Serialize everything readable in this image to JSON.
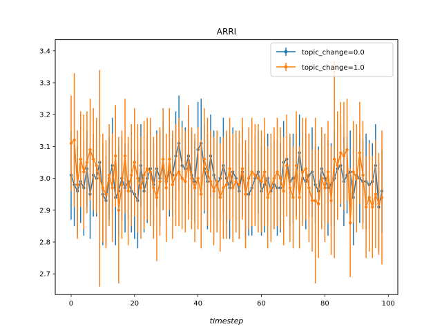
{
  "chart_data": {
    "type": "line",
    "title": "ARRI",
    "xlabel": "timestep",
    "ylabel": "",
    "xlim": [
      -5,
      103
    ],
    "ylim": [
      2.635,
      3.435
    ],
    "xticks": [
      0,
      20,
      40,
      60,
      80,
      100
    ],
    "yticks": [
      2.7,
      2.8,
      2.9,
      3.0,
      3.1,
      3.2,
      3.3,
      3.4
    ],
    "grid": false,
    "legend_position": "top-right",
    "series": [
      {
        "name": "topic_change=0.0",
        "color": "#1f77b4",
        "x": [
          0,
          1,
          2,
          3,
          4,
          5,
          6,
          7,
          8,
          9,
          10,
          11,
          12,
          13,
          14,
          15,
          16,
          17,
          18,
          19,
          20,
          21,
          22,
          23,
          24,
          25,
          26,
          27,
          28,
          29,
          30,
          31,
          32,
          33,
          34,
          35,
          36,
          37,
          38,
          39,
          40,
          41,
          42,
          43,
          44,
          45,
          46,
          47,
          48,
          49,
          50,
          51,
          52,
          53,
          54,
          55,
          56,
          57,
          58,
          59,
          60,
          61,
          62,
          63,
          64,
          65,
          66,
          67,
          68,
          69,
          70,
          71,
          72,
          73,
          74,
          75,
          76,
          77,
          78,
          79,
          80,
          81,
          82,
          83,
          84,
          85,
          86,
          87,
          88,
          89,
          90,
          91,
          92,
          93,
          94,
          95,
          96,
          97,
          98
        ],
        "y": [
          3.01,
          2.98,
          2.96,
          2.99,
          2.97,
          3.03,
          2.95,
          3.01,
          3.0,
          3.05,
          2.95,
          2.93,
          3.0,
          3.04,
          2.94,
          2.96,
          3.0,
          2.97,
          2.99,
          2.96,
          2.95,
          2.93,
          3.04,
          2.96,
          3.0,
          3.03,
          2.98,
          3.03,
          3.0,
          3.04,
          2.99,
          3.02,
          3.01,
          3.07,
          3.11,
          3.04,
          3.03,
          3.07,
          3.01,
          2.99,
          3.09,
          3.11,
          3.03,
          2.99,
          3.07,
          3.01,
          2.98,
          3.0,
          3.04,
          3.0,
          2.97,
          3.02,
          3.0,
          2.96,
          3.02,
          2.95,
          2.95,
          2.97,
          3.0,
          3.02,
          2.96,
          2.98,
          3.0,
          2.96,
          2.98,
          2.97,
          2.97,
          3.05,
          3.06,
          2.99,
          3.0,
          3.01,
          3.08,
          3.0,
          2.99,
          3.01,
          3.02,
          2.98,
          2.96,
          3.03,
          3.0,
          2.97,
          2.98,
          3.0,
          3.03,
          3.04,
          2.99,
          3.01,
          3.02,
          2.94,
          3.01,
          3.0,
          2.99,
          2.99,
          2.98,
          2.99,
          3.04,
          2.91,
          2.96
        ],
        "err": [
          0.14,
          0.13,
          0.14,
          0.13,
          0.15,
          0.12,
          0.14,
          0.13,
          0.12,
          0.14,
          0.16,
          0.14,
          0.13,
          0.15,
          0.15,
          0.14,
          0.13,
          0.14,
          0.12,
          0.13,
          0.14,
          0.15,
          0.13,
          0.13,
          0.14,
          0.14,
          0.13,
          0.12,
          0.15,
          0.14,
          0.13,
          0.14,
          0.13,
          0.14,
          0.15,
          0.14,
          0.13,
          0.15,
          0.14,
          0.13,
          0.15,
          0.14,
          0.14,
          0.15,
          0.13,
          0.14,
          0.14,
          0.13,
          0.15,
          0.14,
          0.16,
          0.14,
          0.13,
          0.15,
          0.14,
          0.14,
          0.13,
          0.15,
          0.14,
          0.13,
          0.14,
          0.15,
          0.14,
          0.13,
          0.14,
          0.15,
          0.14,
          0.13,
          0.12,
          0.14,
          0.14,
          0.13,
          0.12,
          0.14,
          0.15,
          0.13,
          0.14,
          0.12,
          0.14,
          0.13,
          0.14,
          0.15,
          0.13,
          0.15,
          0.14,
          0.13,
          0.14,
          0.12,
          0.13,
          0.15,
          0.14,
          0.14,
          0.13,
          0.15,
          0.14,
          0.12,
          0.13,
          0.14,
          0.13
        ]
      },
      {
        "name": "topic_change=1.0",
        "color": "#ff7f0e",
        "x": [
          0,
          1,
          2,
          3,
          4,
          5,
          6,
          7,
          8,
          9,
          10,
          11,
          12,
          13,
          14,
          15,
          16,
          17,
          18,
          19,
          20,
          21,
          22,
          23,
          24,
          25,
          26,
          27,
          28,
          29,
          30,
          31,
          32,
          33,
          34,
          35,
          36,
          37,
          38,
          39,
          40,
          41,
          42,
          43,
          44,
          45,
          46,
          47,
          48,
          49,
          50,
          51,
          52,
          53,
          54,
          55,
          56,
          57,
          58,
          59,
          60,
          61,
          62,
          63,
          64,
          65,
          66,
          67,
          68,
          69,
          70,
          71,
          72,
          73,
          74,
          75,
          76,
          77,
          78,
          79,
          80,
          81,
          82,
          83,
          84,
          85,
          86,
          87,
          88,
          89,
          90,
          91,
          92,
          93,
          94,
          95,
          96,
          97,
          98
        ],
        "y": [
          3.11,
          3.12,
          2.98,
          3.06,
          3.02,
          3.05,
          3.09,
          3.06,
          3.04,
          3.0,
          2.97,
          2.95,
          3.01,
          2.97,
          3.07,
          2.9,
          2.98,
          3.07,
          2.96,
          3.01,
          3.05,
          3.0,
          2.97,
          3.01,
          3.03,
          3.02,
          2.97,
          2.94,
          2.99,
          3.06,
          2.97,
          3.06,
          2.98,
          3.01,
          3.02,
          3.0,
          2.99,
          3.05,
          3.0,
          2.97,
          3.0,
          2.95,
          3.06,
          3.02,
          2.99,
          2.96,
          2.99,
          2.94,
          2.97,
          2.98,
          3.03,
          2.97,
          2.99,
          2.98,
          3.03,
          2.95,
          3.0,
          3.02,
          3.01,
          3.0,
          2.99,
          3.02,
          2.94,
          2.97,
          3.0,
          3.02,
          3.0,
          2.96,
          3.04,
          2.97,
          2.94,
          3.04,
          2.94,
          3.02,
          3.03,
          2.97,
          2.93,
          2.93,
          2.92,
          3.0,
          2.97,
          3.02,
          2.93,
          3.06,
          3.04,
          3.08,
          3.07,
          3.09,
          2.86,
          3.02,
          3.0,
          3.08,
          3.01,
          2.91,
          2.94,
          2.91,
          2.95,
          2.92,
          2.94
        ],
        "err": [
          0.15,
          0.21,
          0.17,
          0.15,
          0.18,
          0.16,
          0.16,
          0.16,
          0.15,
          0.34,
          0.17,
          0.17,
          0.16,
          0.17,
          0.16,
          0.23,
          0.17,
          0.18,
          0.17,
          0.16,
          0.17,
          0.17,
          0.16,
          0.17,
          0.16,
          0.17,
          0.16,
          0.2,
          0.17,
          0.16,
          0.17,
          0.16,
          0.17,
          0.16,
          0.17,
          0.16,
          0.16,
          0.18,
          0.16,
          0.17,
          0.16,
          0.17,
          0.16,
          0.17,
          0.16,
          0.17,
          0.16,
          0.17,
          0.16,
          0.17,
          0.16,
          0.17,
          0.16,
          0.17,
          0.16,
          0.17,
          0.16,
          0.17,
          0.16,
          0.17,
          0.16,
          0.17,
          0.16,
          0.17,
          0.16,
          0.17,
          0.16,
          0.17,
          0.16,
          0.17,
          0.16,
          0.17,
          0.16,
          0.17,
          0.16,
          0.17,
          0.16,
          0.26,
          0.17,
          0.16,
          0.17,
          0.16,
          0.17,
          0.31,
          0.17,
          0.16,
          0.17,
          0.16,
          0.17,
          0.16,
          0.17,
          0.16,
          0.17,
          0.16,
          0.17,
          0.16,
          0.17,
          0.16,
          0.21
        ]
      }
    ]
  }
}
